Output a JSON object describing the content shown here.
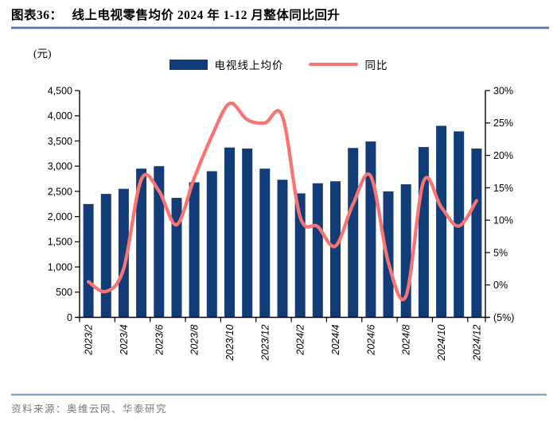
{
  "header": {
    "figure_label": "图表36：",
    "title": "线上电视零售均价 2024 年 1-12 月整体同比回升"
  },
  "chart": {
    "unit_label": "(元)"
  },
  "legend": {
    "bar_label": "电视线上均价",
    "line_label": "同比"
  },
  "footer": {
    "source": "资料来源：奥维云网、华泰研究"
  },
  "colors": {
    "bar": "#123C78",
    "line": "#F87474",
    "title_rule": "#4d77ad",
    "source_rule": "#8aa2c2",
    "source_text": "#7d7a75",
    "axis": "#000000"
  },
  "chart_data": {
    "type": "bar+line",
    "categories": [
      "2023/2",
      "2023/3",
      "2023/4",
      "2023/5",
      "2023/6",
      "2023/7",
      "2023/8",
      "2023/9",
      "2023/10",
      "2023/11",
      "2023/12",
      "2024/1",
      "2024/2",
      "2024/3",
      "2024/4",
      "2024/5",
      "2024/6",
      "2024/7",
      "2024/8",
      "2024/9",
      "2024/10",
      "2024/11",
      "2024/12"
    ],
    "x_tick_labels": [
      "2023/2",
      "2023/4",
      "2023/6",
      "2023/8",
      "2023/10",
      "2023/12",
      "2024/2",
      "2024/4",
      "2024/6",
      "2024/8",
      "2024/10",
      "2024/12"
    ],
    "series": [
      {
        "name": "电视线上均价",
        "type": "bar",
        "axis": "left",
        "color": "#123C78",
        "values": [
          2250,
          2450,
          2550,
          2950,
          3000,
          2370,
          2680,
          2900,
          3370,
          3350,
          2950,
          2730,
          2460,
          2660,
          2700,
          3360,
          3490,
          2500,
          2640,
          3380,
          3800,
          3690,
          3350
        ]
      },
      {
        "name": "同比",
        "type": "line",
        "axis": "right",
        "color": "#F87474",
        "values": [
          0.5,
          -1,
          2.5,
          16.3,
          14.5,
          9.3,
          16.5,
          23,
          28,
          25.5,
          25,
          26,
          10.5,
          9,
          6,
          12.5,
          16.8,
          3.5,
          -1.7,
          16,
          12,
          9.1,
          13
        ]
      }
    ],
    "left_axis": {
      "min": 0,
      "max": 4500,
      "step": 500,
      "tick_labels": [
        "0",
        "500",
        "1,000",
        "1,500",
        "2,000",
        "2,500",
        "3,000",
        "3,500",
        "4,000",
        "4,500"
      ]
    },
    "right_axis": {
      "min": -5,
      "max": 30,
      "step": 5,
      "tick_labels": [
        "(5%)",
        "0%",
        "5%",
        "10%",
        "15%",
        "20%",
        "25%",
        "30%"
      ]
    },
    "grid": false,
    "legend_position": "top-center",
    "title": "线上电视零售均价 2024 年 1-12 月整体同比回升"
  }
}
